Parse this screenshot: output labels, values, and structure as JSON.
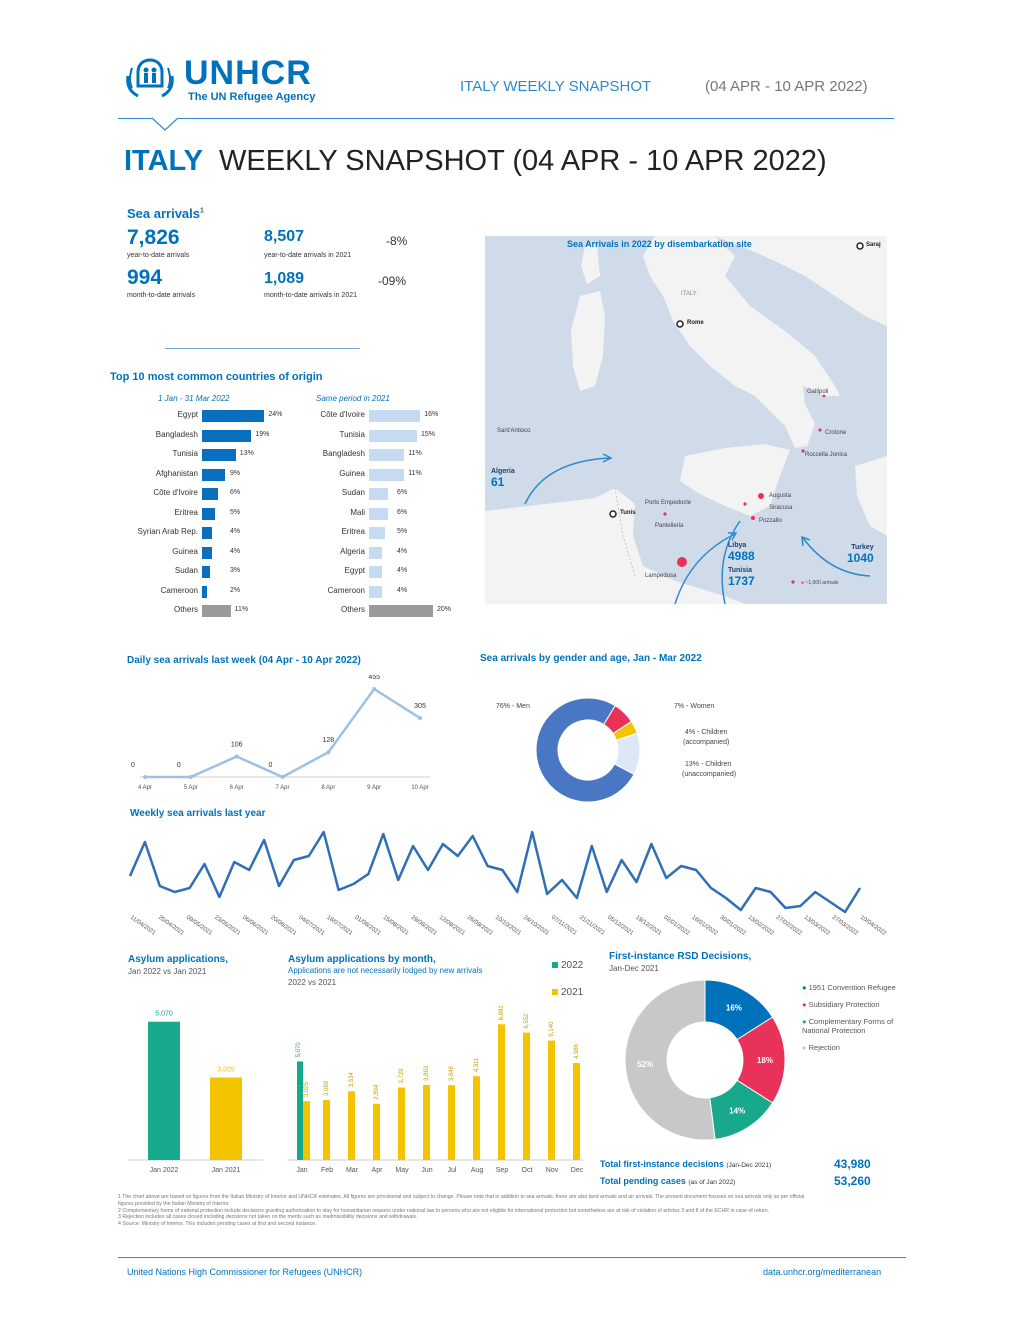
{
  "header": {
    "logo_text": "UNHCR",
    "logo_subtitle": "The UN Refugee Agency",
    "snapshot_label": "ITALY WEEKLY SNAPSHOT",
    "date_range": "(04 APR - 10 APR 2022)"
  },
  "title": {
    "country": "ITALY",
    "rest": "WEEKLY SNAPSHOT (04 APR - 10 APR 2022)"
  },
  "sea_arrivals": {
    "heading": "Sea arrivals",
    "sup": "1",
    "ytd_value": "7,826",
    "ytd_label": "year-to-date arrivals",
    "ytd2021_value": "8,507",
    "ytd2021_label": "year-to-date arrivals in 2021",
    "ytd_change": "-8%",
    "mtd_value": "994",
    "mtd_label": "month-to-date arrivals",
    "mtd2021_value": "1,089",
    "mtd2021_label": "month-to-date arrivals in 2021",
    "mtd_change": "-09%"
  },
  "top10": {
    "heading": "Top 10 most common countries of origin",
    "left_period": "1 Jan - 31 Mar 2022",
    "right_period": "Same period in 2021",
    "left": [
      {
        "name": "Egypt",
        "value": 24,
        "label": "24%"
      },
      {
        "name": "Bangladesh",
        "value": 19,
        "label": "19%"
      },
      {
        "name": "Tunisia",
        "value": 13,
        "label": "13%"
      },
      {
        "name": "Afghanistan",
        "value": 9,
        "label": "9%"
      },
      {
        "name": "Côte d'Ivoire",
        "value": 6,
        "label": "6%"
      },
      {
        "name": "Eritrea",
        "value": 5,
        "label": "5%"
      },
      {
        "name": "Syrian Arab Rep.",
        "value": 4,
        "label": "4%"
      },
      {
        "name": "Guinea",
        "value": 4,
        "label": "4%"
      },
      {
        "name": "Sudan",
        "value": 3,
        "label": "3%"
      },
      {
        "name": "Cameroon",
        "value": 2,
        "label": "2%"
      },
      {
        "name": "Others",
        "value": 11,
        "label": "11%"
      }
    ],
    "right": [
      {
        "name": "Côte d'Ivoire",
        "value": 16,
        "label": "16%"
      },
      {
        "name": "Tunisia",
        "value": 15,
        "label": "15%"
      },
      {
        "name": "Bangladesh",
        "value": 11,
        "label": "11%"
      },
      {
        "name": "Guinea",
        "value": 11,
        "label": "11%"
      },
      {
        "name": "Sudan",
        "value": 6,
        "label": "6%"
      },
      {
        "name": "Mali",
        "value": 6,
        "label": "6%"
      },
      {
        "name": "Eritrea",
        "value": 5,
        "label": "5%"
      },
      {
        "name": "Algeria",
        "value": 4,
        "label": "4%"
      },
      {
        "name": "Egypt",
        "value": 4,
        "label": "4%"
      },
      {
        "name": "Cameroon",
        "value": 4,
        "label": "4%"
      },
      {
        "name": "Others",
        "value": 20,
        "label": "20%"
      }
    ]
  },
  "map": {
    "title": "Sea Arrivals in 2022 by disembarkation site",
    "labels": {
      "sarajevo": "Saraj",
      "italy": "ITALY",
      "rome": "Rome",
      "gallipoli": "Gallipoli",
      "crotone": "Crotone",
      "roccella": "Roccella Jonica",
      "santantioco": "Sant'Antioco",
      "augusta": "Augusta",
      "siracusa": "Siracusa",
      "pozzallo": "Pozzallo",
      "porto_empedocle": "Porto Empedocle",
      "pantelleria": "Pantelleria",
      "tunis": "Tunis",
      "lampedusa": "Lampedusa",
      "legend": "~1,000 arrivals"
    },
    "flows": [
      {
        "name": "Algeria",
        "value": "61"
      },
      {
        "name": "Libya",
        "value": "4988"
      },
      {
        "name": "Tunisia",
        "value": "1737"
      },
      {
        "name": "Turkey",
        "value": "1040"
      }
    ]
  },
  "chart_data": [
    {
      "type": "line",
      "title": "Daily sea arrivals last week (04 Apr - 10 Apr 2022)",
      "categories": [
        "4 Apr",
        "5 Apr",
        "6 Apr",
        "7 Apr",
        "8 Apr",
        "9 Apr",
        "10 Apr"
      ],
      "values": [
        0,
        0,
        106,
        0,
        128,
        455,
        305
      ]
    },
    {
      "type": "pie",
      "title": "Sea arrivals by gender and age, Jan - Mar 2022",
      "slices": [
        {
          "name": "Men",
          "value": 76,
          "label": "76% - Men",
          "color": "#4a77c4"
        },
        {
          "name": "Women",
          "value": 7,
          "label": "7% - Women",
          "color": "#e8325a"
        },
        {
          "name": "Children (accompanied)",
          "value": 4,
          "label": "4% - Children (accompanied)",
          "color": "#f5c400"
        },
        {
          "name": "Children (unaccompanied)",
          "value": 13,
          "label": "13% - Children (unaccompanied)",
          "color": "#dce8f7"
        }
      ]
    },
    {
      "type": "line",
      "title": "Weekly sea arrivals last year",
      "x": [
        "11/04/2021",
        "25/04/2021",
        "09/05/2021",
        "23/05/2021",
        "06/06/2021",
        "20/06/2021",
        "04/07/2021",
        "18/07/2021",
        "01/08/2021",
        "15/08/2021",
        "29/08/2021",
        "12/09/2021",
        "26/09/2021",
        "10/10/2021",
        "24/10/2021",
        "07/11/2021",
        "21/11/2021",
        "05/12/2021",
        "19/12/2021",
        "02/01/2022",
        "16/01/2022",
        "30/01/2022",
        "13/02/2022",
        "27/02/2022",
        "13/03/2022",
        "27/03/2022",
        "10/04/2022"
      ]
    },
    {
      "type": "bar",
      "title": "Asylum applications,",
      "subtitle": "Jan 2022 vs Jan 2021",
      "categories": [
        "Jan 2022",
        "Jan 2021"
      ],
      "values": [
        5070,
        3025
      ],
      "labels": [
        "5,070",
        "3,025"
      ],
      "colors": [
        "#18a88c",
        "#f5c400"
      ]
    },
    {
      "type": "bar",
      "title": "Asylum applications by month,",
      "subtitle": "Applications are not necessarily lodged by new arrivals",
      "subtitle2": "2022 vs 2021",
      "categories": [
        "Jan",
        "Feb",
        "Mar",
        "Apr",
        "May",
        "Jun",
        "Jul",
        "Aug",
        "Sep",
        "Oct",
        "Nov",
        "Dec"
      ],
      "series": [
        {
          "name": "2022",
          "values": [
            5070,
            null,
            null,
            null,
            null,
            null,
            null,
            null,
            null,
            null,
            null,
            null
          ],
          "color": "#18a88c"
        },
        {
          "name": "2021",
          "values": [
            3025,
            3088,
            3534,
            2894,
            3729,
            3863,
            3848,
            4311,
            6981,
            6552,
            6140,
            4986
          ],
          "color": "#f5c400"
        }
      ]
    },
    {
      "type": "pie",
      "title": "First-instance RSD Decisions,",
      "subtitle": "Jan-Dec 2021",
      "slices": [
        {
          "name": "1951 Convention Refugee",
          "value": 16,
          "label": "16%",
          "color": "#0072bc"
        },
        {
          "name": "Subsidiary Protection",
          "value": 18,
          "label": "18%",
          "color": "#e8325a"
        },
        {
          "name": "Complementary Forms of National Protection",
          "value": 14,
          "label": "14%",
          "color": "#18a88c"
        },
        {
          "name": "Rejection",
          "value": 52,
          "label": "52%",
          "color": "#c8c8c8"
        }
      ]
    }
  ],
  "daily": {
    "title": "Daily sea arrivals last week (04 Apr - 10 Apr 2022)"
  },
  "gender": {
    "title": "Sea arrivals by gender and age, Jan - Mar 2022"
  },
  "weekly": {
    "title": "Weekly sea arrivals last year"
  },
  "asylum": {
    "title": "Asylum applications,",
    "subtitle": "Jan 2022 vs Jan 2021"
  },
  "asylum_month": {
    "title": "Asylum applications by month,",
    "subtitle": "Applications are not necessarily lodged by new arrivals",
    "subtitle2": "2022 vs 2021",
    "legend_2022": "2022",
    "legend_2021": "2021"
  },
  "rsd": {
    "title": "First-instance RSD Decisions,",
    "subtitle": "Jan-Dec 2021",
    "legend": [
      "1951 Convention Refugee",
      "Subsidiary Protection",
      "Complementary Forms of National Protection",
      "Rejection"
    ],
    "total_label": "Total first-instance decisions",
    "total_period": "(Jan-Dec 2021)",
    "total_value": "43,980",
    "pending_label": "Total pending cases",
    "pending_period": "(as of Jan 2022)",
    "pending_value": "53,260"
  },
  "footnotes": [
    "1 The chart above are based on figures from the Italian Ministry of Interior and UNHCR estimates. All figures are provisional and subject to change. Please note that in addition to sea arrivals, there are also land arrivals and air arrivals. The present document focuses on sea arrivals only as per official figures provided by the Italian Ministry of Interior.",
    "2 Complementary forms of national protection include decisions granting authorization to stay for humanitarian reasons under national law to persons who are not eligible for international protection but nonetheless are at risk of violation of articles 3 and 8 of the ECHR in case of return.",
    "3 Rejection includes all cases closed including decisions not taken on the merits such as inadmissibility decisions and withdrawals.",
    "4 Source: Ministry of Interior. This includes pending cases at first and second instance."
  ],
  "footer": {
    "left": "United Nations High Commissioner for Refugees (UNHCR)",
    "right": "data.unhcr.org/mediterranean"
  }
}
